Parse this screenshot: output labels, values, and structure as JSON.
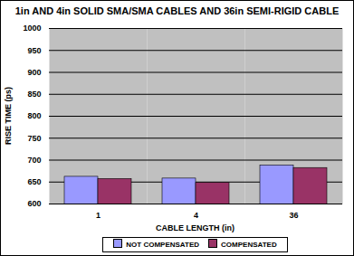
{
  "chart_data": {
    "type": "bar",
    "title": "1in AND 4in SOLID SMA/SMA CABLES AND 36in SEMI-RIGID CABLE",
    "x_label": "CABLE LENGTH (in)",
    "y_label": "RISE TIME (ps)",
    "categories": [
      "1",
      "4",
      "36"
    ],
    "series": [
      {
        "name": "NOT COMPENSATED",
        "color": "#9999ff",
        "values": [
          662,
          658,
          688
        ]
      },
      {
        "name": "COMPENSATED",
        "color": "#993366",
        "values": [
          657,
          648,
          682
        ]
      }
    ],
    "ylim": [
      600,
      1000
    ],
    "yticks": [
      600,
      650,
      700,
      750,
      800,
      850,
      900,
      950,
      1000
    ],
    "grid": true,
    "legend": "bottom"
  }
}
